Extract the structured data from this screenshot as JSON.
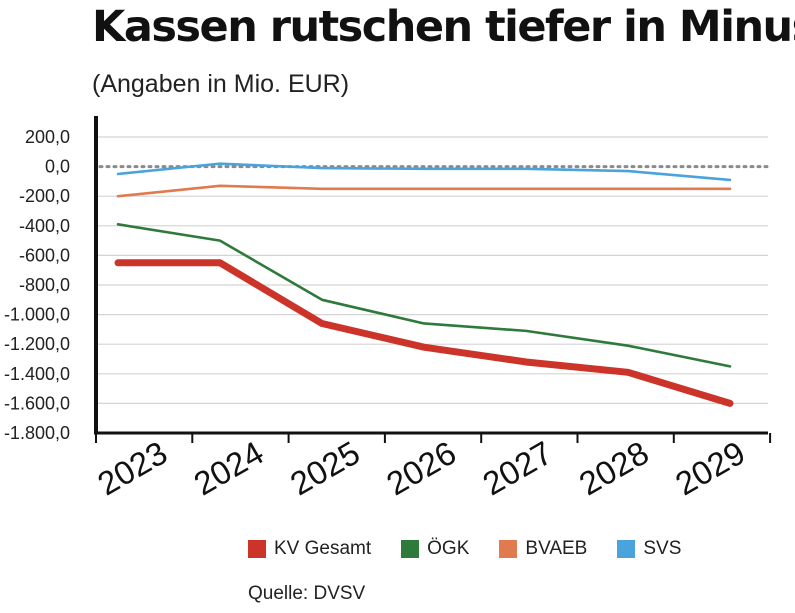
{
  "title": "Kassen rutschen tiefer in Minus",
  "subtitle": "(Angaben in Mio. EUR)",
  "source": "Quelle: DVSV",
  "chart_data": {
    "type": "line",
    "x": [
      "2023",
      "2024",
      "2025",
      "2026",
      "2027",
      "2028",
      "2029"
    ],
    "yticks": [
      "200,0",
      "0,0",
      "-200,0",
      "-400,0",
      "-600,0",
      "-800,0",
      "-1.000,0",
      "-1.200,0",
      "-1.400,0",
      "-1.600,0",
      "-1.800,0"
    ],
    "ylim": [
      -1800,
      200
    ],
    "reference_line": 0,
    "grid": true,
    "legend_position": "bottom",
    "series": [
      {
        "name": "KV Gesamt",
        "color": "#cc3329",
        "values": [
          -650,
          -650,
          -1060,
          -1220,
          -1320,
          -1390,
          -1600
        ]
      },
      {
        "name": "ÖGK",
        "color": "#2e7a3b",
        "values": [
          -390,
          -500,
          -900,
          -1060,
          -1110,
          -1210,
          -1350
        ]
      },
      {
        "name": "BVAEB",
        "color": "#e07a4f",
        "values": [
          -200,
          -130,
          -150,
          -150,
          -150,
          -150,
          -150
        ]
      },
      {
        "name": "SVS",
        "color": "#4aa3dc",
        "values": [
          -50,
          20,
          -10,
          -15,
          -15,
          -30,
          -90
        ]
      }
    ]
  }
}
